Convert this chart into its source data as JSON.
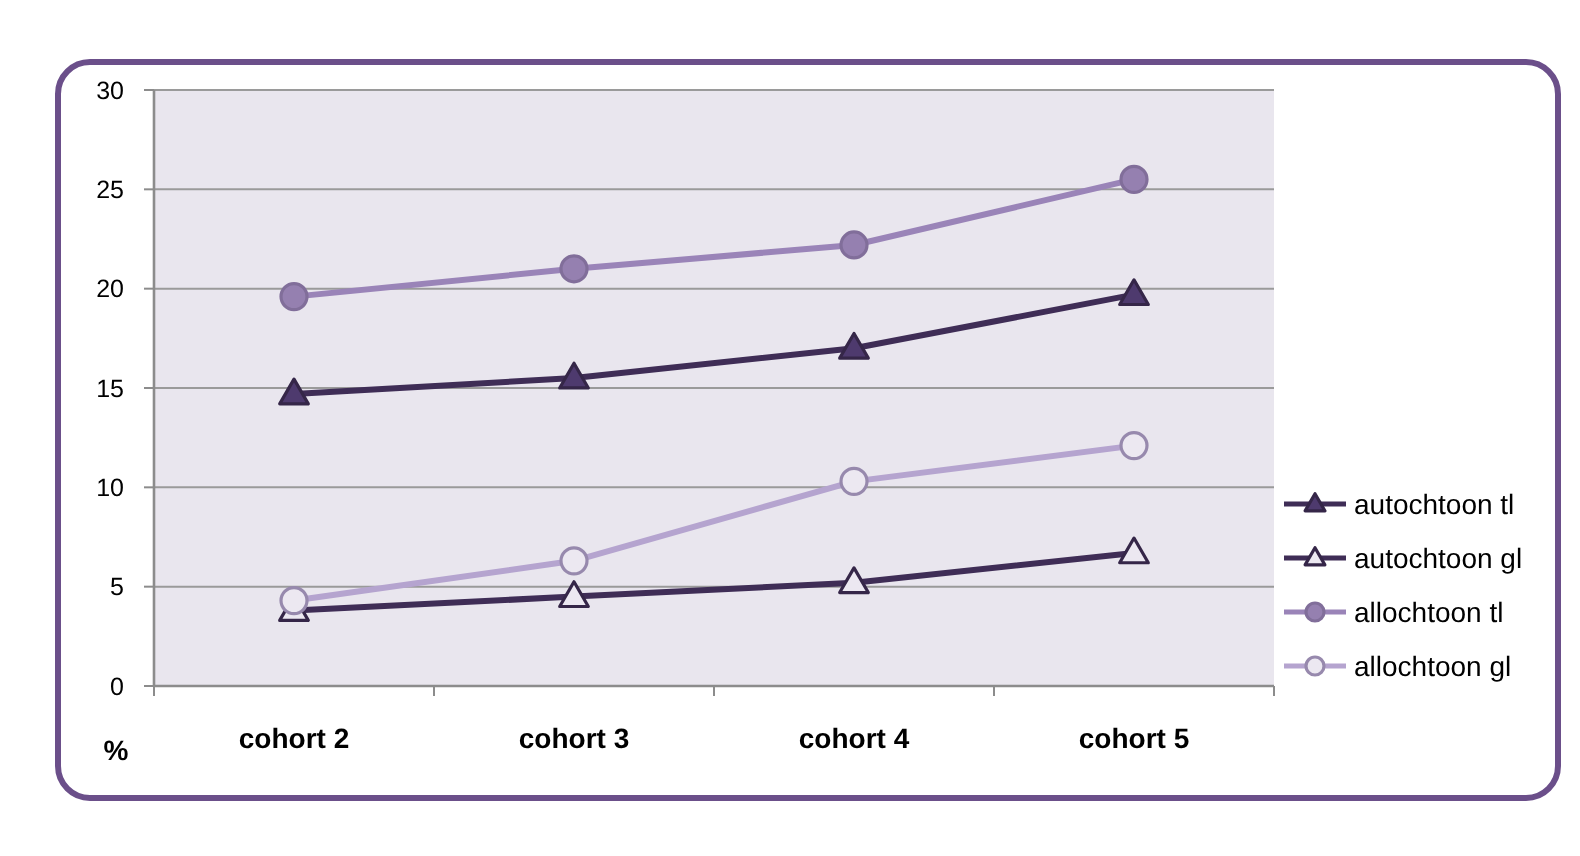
{
  "chart_data": {
    "type": "line",
    "ylabel": "%",
    "categories": [
      "cohort 2",
      "cohort 3",
      "cohort 4",
      "cohort 5"
    ],
    "series": [
      {
        "name": "autochtoon tl",
        "color": "#3f2d56",
        "marker": "triangle",
        "colors": [
          "#4e3a6e",
          "#4e3a6e",
          "#4e3a6e",
          "#4e3a6e"
        ],
        "values": [
          14.7,
          15.5,
          17.0,
          19.7
        ]
      },
      {
        "name": "autochtoon gl",
        "color": "#3f2d56",
        "marker": "triangle",
        "colors": [
          "#ece8f1",
          "#ece8f1",
          "#ece8f1",
          "#ece8f1"
        ],
        "values": [
          3.8,
          4.5,
          5.2,
          6.7
        ]
      },
      {
        "name": "allochtoon tl",
        "color": "#9a84b8",
        "marker": "circle",
        "colors": [
          "#9580b0",
          "#9580b0",
          "#9580b0",
          "#9580b0"
        ],
        "values": [
          19.6,
          21.0,
          22.2,
          25.5
        ]
      },
      {
        "name": "allochtoon gl",
        "color": "#b5a4cf",
        "marker": "circle",
        "colors": [
          "#ece8f1",
          "#ece8f1",
          "#ece8f1",
          "#ece8f1"
        ],
        "values": [
          4.3,
          6.3,
          10.3,
          12.1
        ]
      }
    ],
    "ylim": [
      0,
      30
    ],
    "yticks": [
      0,
      5,
      10,
      15,
      20,
      25,
      30
    ],
    "grid": "y",
    "legend": "right"
  }
}
